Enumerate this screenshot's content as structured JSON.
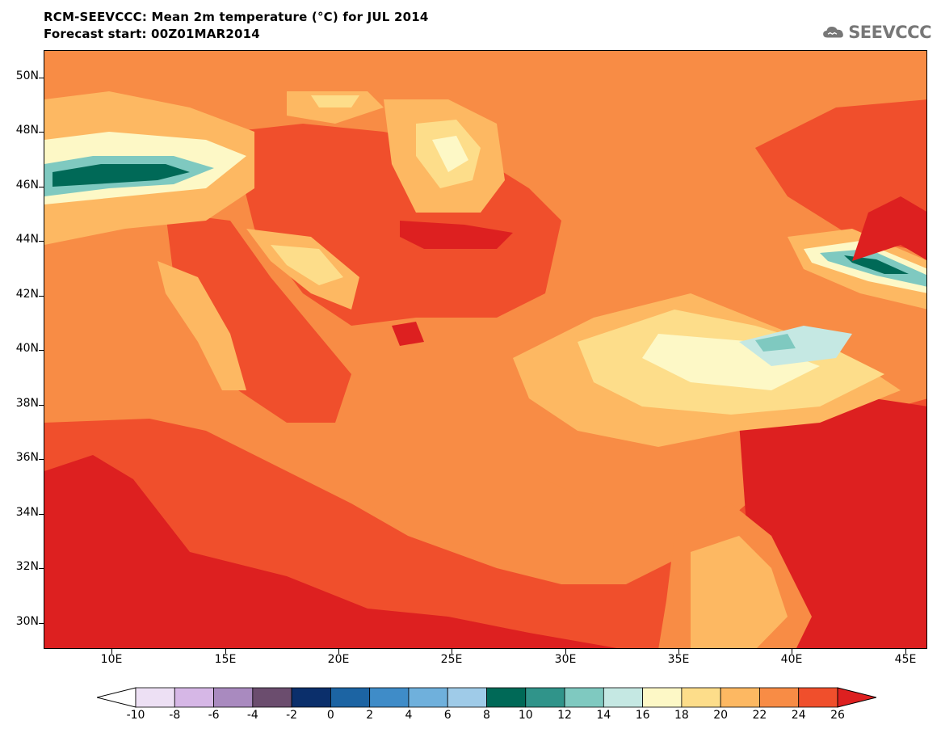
{
  "title_line1": "RCM-SEEVCCC: Mean 2m temperature (°C) for JUL 2014",
  "title_line2": "Forecast start: 00Z01MAR2014",
  "logo_text": "SEEVCCC",
  "map": {
    "lat_ticks": [
      "50N",
      "48N",
      "46N",
      "44N",
      "42N",
      "40N",
      "38N",
      "36N",
      "34N",
      "32N",
      "30N"
    ],
    "lon_ticks": [
      "10E",
      "15E",
      "20E",
      "25E",
      "30E",
      "35E",
      "40E",
      "45E"
    ],
    "lon_range": [
      7,
      46
    ],
    "lat_range": [
      29,
      51
    ]
  },
  "colorbar": {
    "labels": [
      "-10",
      "-8",
      "-6",
      "-4",
      "-2",
      "0",
      "2",
      "4",
      "6",
      "8",
      "10",
      "12",
      "14",
      "16",
      "18",
      "20",
      "22",
      "24",
      "26"
    ],
    "under_color": "#ffffff",
    "over_color": "#dd2020",
    "colors": [
      "#ede0f4",
      "#d6b7e6",
      "#a98abf",
      "#6b4d6e",
      "#0b2f6b",
      "#1c64a3",
      "#3f8cc8",
      "#6fb0dc",
      "#9fcbe8",
      "#006957",
      "#30948a",
      "#7fc9c0",
      "#c5e8e3",
      "#fdf8c6",
      "#fddd8a",
      "#fdb862",
      "#f88c45",
      "#f04f2c"
    ]
  },
  "colors": {
    "t26": "#dd2020",
    "t24": "#f04f2c",
    "t22": "#f88c45",
    "t20": "#fdb862",
    "t18": "#fddd8a",
    "t16": "#fdf8c6",
    "t14": "#c5e8e3",
    "t12": "#7fc9c0",
    "t10": "#30948a",
    "t8": "#006957"
  }
}
